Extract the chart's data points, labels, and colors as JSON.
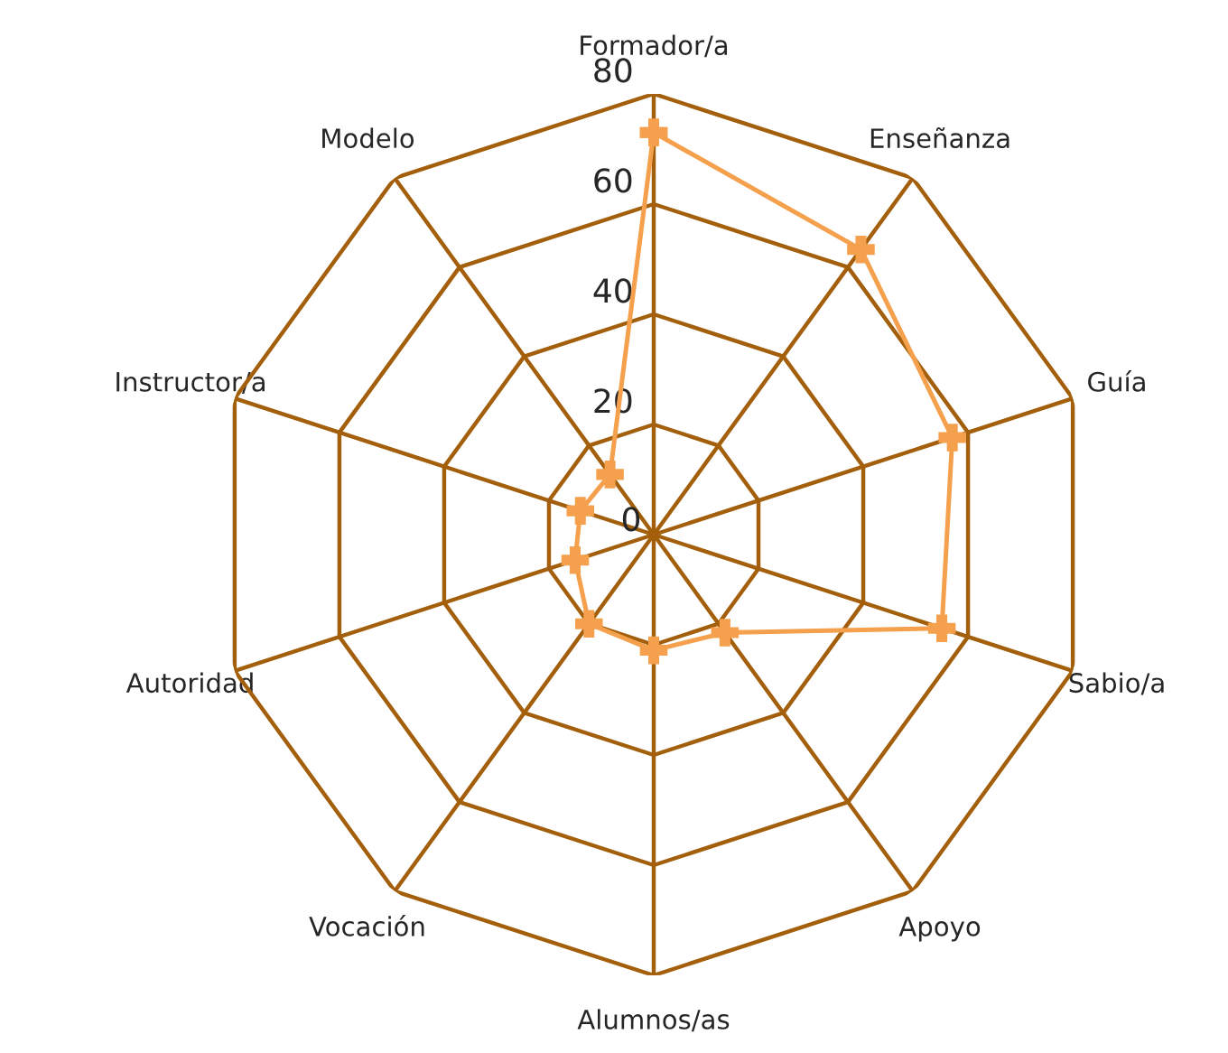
{
  "chart_data": {
    "type": "radar",
    "categories": [
      "Formador/a",
      "Enseñanza",
      "Guía",
      "Sabio/a",
      "Apoyo",
      "Alumnos/as",
      "Vocación",
      "Autoridad",
      "Instructor/a",
      "Modelo"
    ],
    "series": [
      {
        "color": "#f5a04c",
        "values": [
          73,
          64,
          57,
          55,
          22,
          21,
          20,
          15,
          14,
          13.5
        ]
      }
    ],
    "ylim": [
      0,
      80
    ],
    "yticks": [
      0,
      20,
      40,
      60,
      80
    ],
    "grid": true,
    "marker": "cross",
    "line_style": "solid"
  }
}
